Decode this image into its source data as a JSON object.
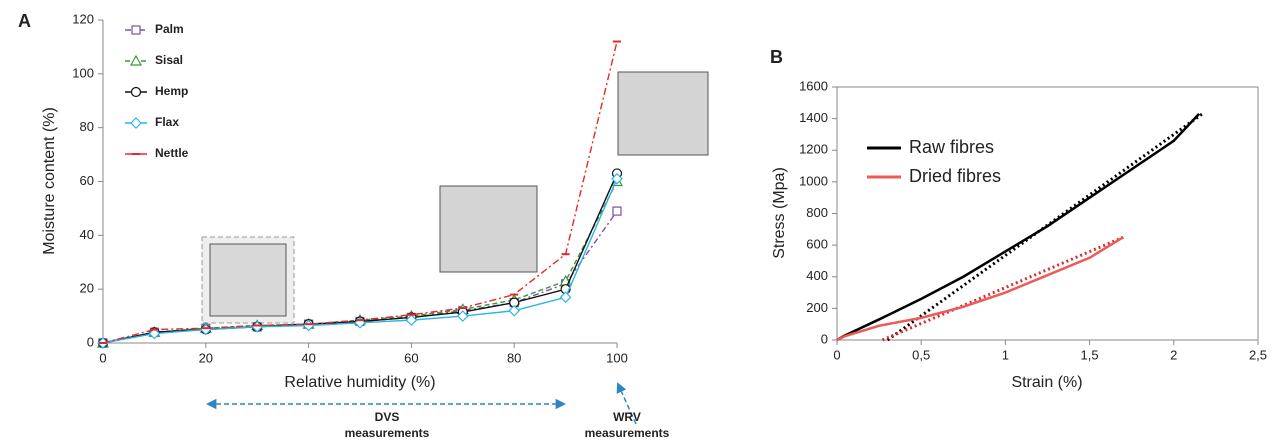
{
  "chart_data": [
    {
      "type": "line",
      "panel_label": "A",
      "x_label": "Relative humidity (%)",
      "y_label": "Moisture content (%)",
      "x": [
        0,
        10,
        20,
        30,
        40,
        50,
        60,
        70,
        80,
        90,
        100
      ],
      "xlim": [
        0,
        100
      ],
      "xticks": [
        0,
        20,
        40,
        60,
        80,
        100
      ],
      "ylim": [
        0,
        120
      ],
      "yticks": [
        0,
        20,
        40,
        60,
        80,
        100,
        120
      ],
      "legend": "upper left",
      "series": [
        {
          "name": "Palm",
          "color": "#7e4fa6",
          "marker": "square",
          "dash": "6 3 2 3",
          "values": [
            0,
            4,
            5.5,
            6,
            7,
            8,
            9.5,
            12,
            15,
            22,
            49
          ]
        },
        {
          "name": "Sisal",
          "color": "#3a9a3a",
          "marker": "triangle",
          "dash": "5 3",
          "values": [
            0,
            4,
            5.5,
            6.5,
            7,
            8.5,
            10,
            12.5,
            16,
            23,
            60
          ]
        },
        {
          "name": "Hemp",
          "color": "#111111",
          "marker": "circle",
          "dash": "",
          "values": [
            0,
            4,
            5,
            6,
            7,
            8,
            9.5,
            11.5,
            15,
            20,
            63
          ]
        },
        {
          "name": "Flax",
          "color": "#2cb5e8",
          "marker": "diamond",
          "dash": "",
          "values": [
            0,
            3.5,
            5,
            6,
            6.5,
            7.5,
            8.5,
            10,
            12,
            17,
            61
          ]
        },
        {
          "name": "Nettle",
          "color": "#e8262a",
          "marker": "dash",
          "dash": "7 3 2 3",
          "values": [
            0,
            5,
            5.5,
            6.5,
            7,
            8.5,
            10.5,
            13,
            18,
            33,
            112
          ]
        }
      ],
      "annotations": [
        {
          "text": "DVS measurements"
        },
        {
          "text": "WRV measurements"
        }
      ]
    },
    {
      "type": "line",
      "panel_label": "B",
      "x_label": "Strain (%)",
      "y_label": "Stress (Mpa)",
      "xlim": [
        0,
        2.5
      ],
      "xticks": [
        0,
        {
          "value": 0.5,
          "label": "0,5"
        },
        1,
        {
          "value": 1.5,
          "label": "1,5"
        },
        2,
        {
          "value": 2.5,
          "label": "2,5"
        }
      ],
      "ylim": [
        0,
        1600
      ],
      "yticks": [
        0,
        200,
        400,
        600,
        800,
        1000,
        1200,
        1400,
        1600
      ],
      "legend": "upper left",
      "series": [
        {
          "name": "Raw fibres",
          "color": "#000000",
          "x": [
            0,
            0.05,
            0.25,
            0.5,
            0.75,
            1.0,
            1.25,
            1.5,
            1.75,
            2.0,
            2.15
          ],
          "values": [
            0,
            30,
            130,
            260,
            400,
            560,
            720,
            900,
            1080,
            1260,
            1430
          ]
        },
        {
          "name": "Dried fibres",
          "color": "#ec5a5a",
          "x": [
            0,
            0.05,
            0.25,
            0.5,
            0.75,
            1.0,
            1.25,
            1.5,
            1.7
          ],
          "values": [
            0,
            25,
            90,
            140,
            210,
            300,
            410,
            520,
            650
          ]
        }
      ],
      "fit_lines": [
        {
          "color": "#000000",
          "x": [
            0.3,
            2.17
          ],
          "values": [
            0,
            1430
          ]
        },
        {
          "color": "#d83030",
          "x": [
            0.27,
            1.7
          ],
          "values": [
            0,
            650
          ]
        }
      ]
    }
  ]
}
